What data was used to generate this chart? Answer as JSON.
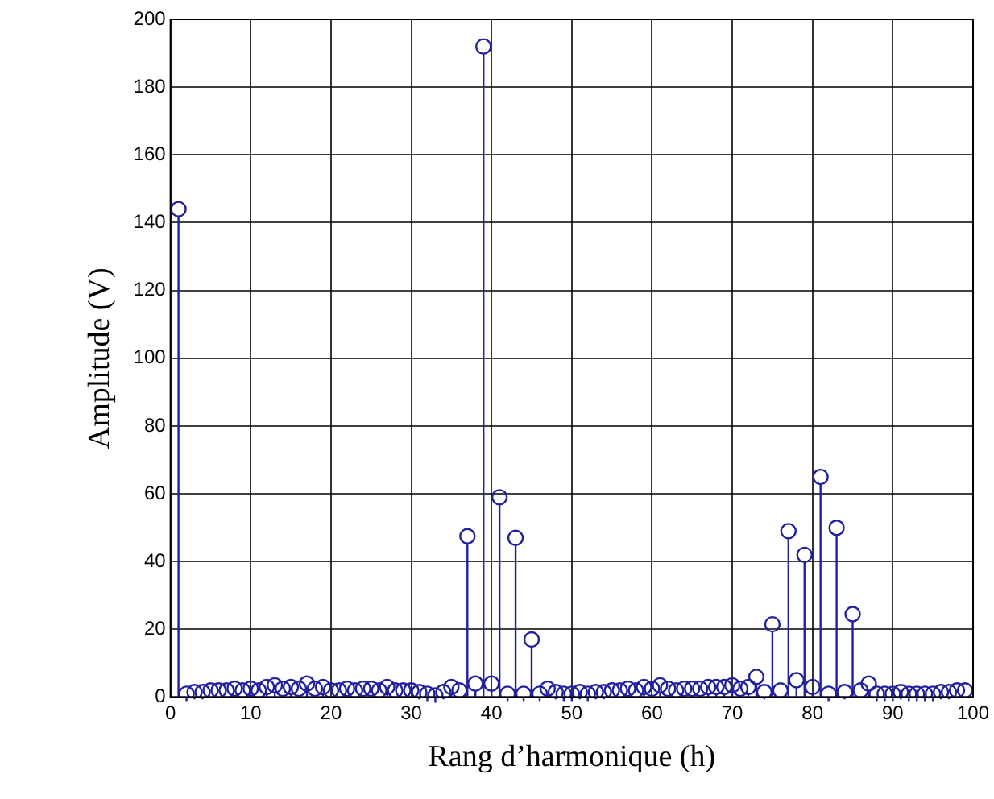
{
  "chart_data": {
    "type": "lollipop",
    "xlabel": "Rang d’harmonique (h)",
    "ylabel": "Amplitude (V)",
    "x": [
      1,
      2,
      3,
      4,
      5,
      6,
      7,
      8,
      9,
      10,
      11,
      12,
      13,
      14,
      15,
      16,
      17,
      18,
      19,
      20,
      21,
      22,
      23,
      24,
      25,
      26,
      27,
      28,
      29,
      30,
      31,
      32,
      33,
      34,
      35,
      36,
      37,
      38,
      39,
      40,
      41,
      42,
      43,
      44,
      45,
      46,
      47,
      48,
      49,
      50,
      51,
      52,
      53,
      54,
      55,
      56,
      57,
      58,
      59,
      60,
      61,
      62,
      63,
      64,
      65,
      66,
      67,
      68,
      69,
      70,
      71,
      72,
      73,
      74,
      75,
      76,
      77,
      78,
      79,
      80,
      81,
      82,
      83,
      84,
      85,
      86,
      87,
      88,
      89,
      90,
      91,
      92,
      93,
      94,
      95,
      96,
      97,
      98,
      99
    ],
    "series": [
      {
        "color": "#1f1fa0",
        "values": [
          144,
          1,
          1.5,
          1.5,
          2,
          2,
          2,
          2.5,
          2,
          2.5,
          2,
          3,
          3.5,
          2.5,
          3,
          2.5,
          4,
          2.5,
          3,
          2,
          2,
          2.5,
          2,
          2.5,
          2.5,
          2,
          3,
          2,
          2,
          2,
          1.5,
          1,
          0.5,
          1.5,
          3,
          2,
          47.5,
          4,
          192,
          4,
          59,
          1,
          47,
          1,
          17,
          1,
          2.5,
          1.5,
          1,
          1,
          1.5,
          1,
          1.5,
          1.5,
          2,
          2,
          2.5,
          2,
          3,
          2.5,
          3.5,
          2.5,
          2,
          2.5,
          2.5,
          2.5,
          3,
          3,
          3,
          3.5,
          2.5,
          3,
          6,
          1.5,
          21.5,
          2,
          49,
          5,
          42,
          3,
          65,
          1,
          50,
          1.5,
          24.5,
          2,
          4,
          1,
          1,
          1,
          1.5,
          1,
          1,
          1,
          1,
          1.5,
          1.5,
          2,
          2
        ]
      }
    ],
    "xlim": [
      0,
      100
    ],
    "xticks": [
      0,
      10,
      20,
      30,
      40,
      50,
      60,
      70,
      80,
      90,
      100
    ],
    "ylim": [
      0,
      200
    ],
    "yticks": [
      0,
      20,
      40,
      60,
      80,
      100,
      120,
      140,
      160,
      180,
      200
    ],
    "grid": true,
    "marker": "circle",
    "legend": false
  }
}
